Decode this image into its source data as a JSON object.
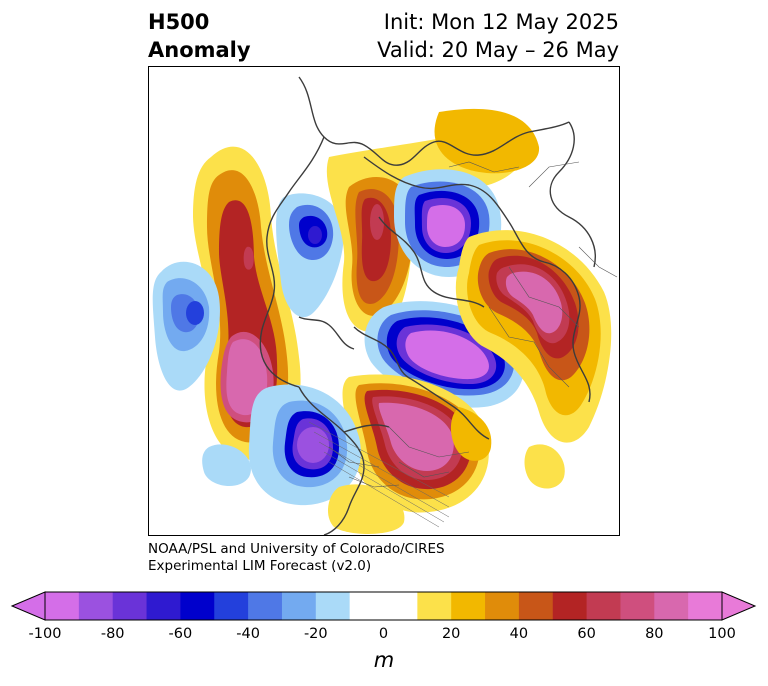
{
  "title": {
    "left_line1": "H500",
    "left_line2": "Anomaly",
    "init": "Init: Mon 12 May 2025",
    "valid": "Valid: 20 May – 26 May"
  },
  "credit": {
    "line1": "NOAA/PSL and University of Colorado/CIRES",
    "line2": "Experimental LIM Forecast (v2.0)"
  },
  "colorbar": {
    "unit": "m",
    "tick_labels": [
      "-100",
      "-80",
      "-60",
      "-40",
      "-20",
      "0",
      "20",
      "40",
      "60",
      "80",
      "100"
    ],
    "low_extend_color": "#d46ee8",
    "high_extend_color": "#e87ad8",
    "colors": [
      "#d46ee8",
      "#9b51e0",
      "#6a33d8",
      "#2f1ad0",
      "#0000cc",
      "#2340dc",
      "#4f78e6",
      "#73aaf0",
      "#aadaf8",
      "#ffffff",
      "#ffffff",
      "#fce14a",
      "#f2b800",
      "#e08c0a",
      "#c85618",
      "#b32424",
      "#c23b52",
      "#cf4f7e",
      "#d868ae",
      "#e87ad8"
    ]
  },
  "map": {
    "projection": "north-polar-stereographic",
    "anomaly_centers": [
      {
        "region": "Alaska / Gulf of Alaska",
        "sign": "positive"
      },
      {
        "region": "Central North Pacific",
        "sign": "negative"
      },
      {
        "region": "Western Canada",
        "sign": "negative"
      },
      {
        "region": "Canadian Arctic",
        "sign": "positive"
      },
      {
        "region": "Greenland",
        "sign": "negative"
      },
      {
        "region": "Central/East Siberia",
        "sign": "negative"
      },
      {
        "region": "Northern Europe / Scandinavia",
        "sign": "positive"
      },
      {
        "region": "Western Russia / Urals",
        "sign": "positive"
      },
      {
        "region": "East Asia / Japan",
        "sign": "negative"
      }
    ]
  }
}
